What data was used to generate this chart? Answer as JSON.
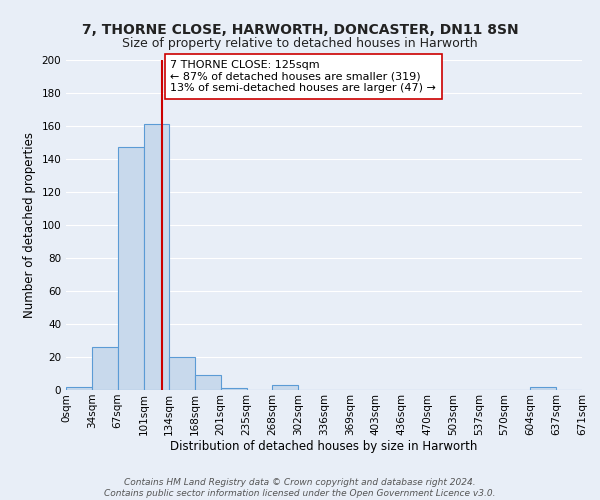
{
  "title": "7, THORNE CLOSE, HARWORTH, DONCASTER, DN11 8SN",
  "subtitle": "Size of property relative to detached houses in Harworth",
  "xlabel": "Distribution of detached houses by size in Harworth",
  "ylabel": "Number of detached properties",
  "bin_edges": [
    0,
    34,
    67,
    101,
    134,
    168,
    201,
    235,
    268,
    302,
    336,
    369,
    403,
    436,
    470,
    503,
    537,
    570,
    604,
    637,
    671
  ],
  "bar_heights": [
    2,
    26,
    147,
    161,
    20,
    9,
    1,
    0,
    3,
    0,
    0,
    0,
    0,
    0,
    0,
    0,
    0,
    0,
    2,
    0
  ],
  "bar_color": "#c8d9ec",
  "bar_edgecolor": "#5b9bd5",
  "bar_linewidth": 0.8,
  "vline_x": 125,
  "vline_color": "#cc0000",
  "vline_linewidth": 1.5,
  "ylim": [
    0,
    200
  ],
  "yticks": [
    0,
    20,
    40,
    60,
    80,
    100,
    120,
    140,
    160,
    180,
    200
  ],
  "background_color": "#e8eef7",
  "grid_color": "#ffffff",
  "annotation_text": "7 THORNE CLOSE: 125sqm\n← 87% of detached houses are smaller (319)\n13% of semi-detached houses are larger (47) →",
  "annotation_box_edgecolor": "#cc0000",
  "annotation_box_facecolor": "#ffffff",
  "footer_line1": "Contains HM Land Registry data © Crown copyright and database right 2024.",
  "footer_line2": "Contains public sector information licensed under the Open Government Licence v3.0.",
  "title_fontsize": 10,
  "subtitle_fontsize": 9,
  "axis_label_fontsize": 8.5,
  "tick_fontsize": 7.5,
  "annotation_fontsize": 8,
  "footer_fontsize": 6.5
}
